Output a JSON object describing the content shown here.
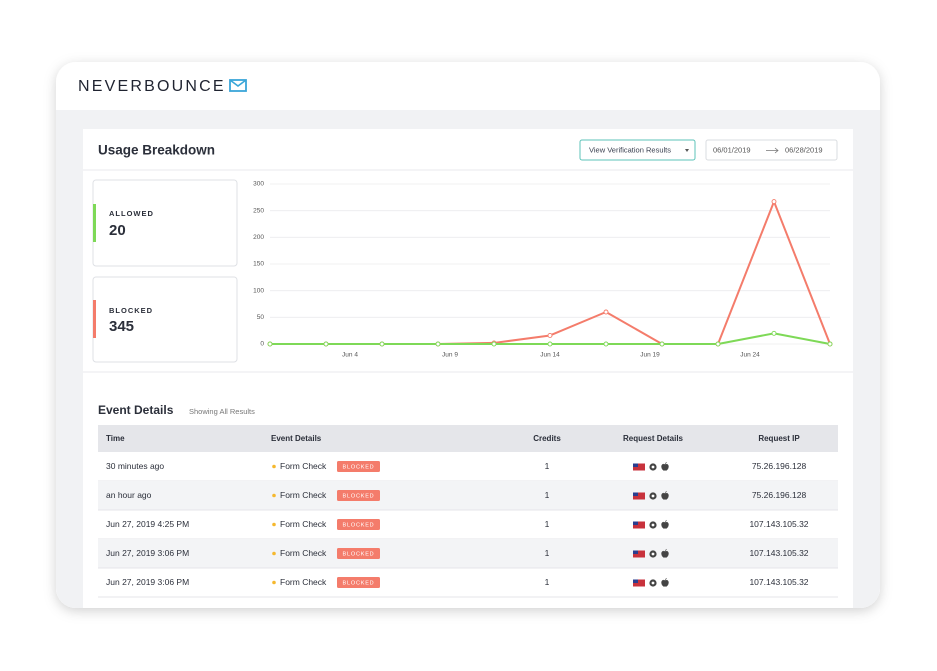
{
  "header": {
    "logo": "NEVERBOUNCE"
  },
  "usage": {
    "title": "Usage Breakdown",
    "button": "View Verification Results",
    "date_from": "06/01/2019",
    "date_to": "06/28/2019",
    "stats": [
      {
        "label": "ALLOWED",
        "value": 20
      },
      {
        "label": "BLOCKED",
        "value": 345
      }
    ]
  },
  "chart_data": {
    "type": "line",
    "x": [
      0,
      2.8,
      5.6,
      8.4,
      11.2,
      14,
      16.8,
      19.6,
      22.4,
      25.2,
      28
    ],
    "series": [
      {
        "color": "#f47c6b",
        "values": [
          0,
          0,
          0,
          0,
          2,
          16,
          60,
          0,
          0,
          267,
          0
        ]
      },
      {
        "color": "#7ed957",
        "values": [
          0,
          0,
          0,
          0,
          0,
          0,
          0,
          0,
          0,
          20,
          0
        ]
      }
    ],
    "xlim": [
      0,
      28
    ],
    "xticks": [
      {
        "value": 4,
        "label": "Jun 4"
      },
      {
        "value": 9,
        "label": "Jun 9"
      },
      {
        "value": 14,
        "label": "Jun 14"
      },
      {
        "value": 19,
        "label": "Jun 19"
      },
      {
        "value": 24,
        "label": "Jun 24"
      }
    ],
    "ylim": [
      0,
      300
    ],
    "yticks": [
      0,
      50,
      100,
      150,
      200,
      250,
      300
    ],
    "grid": true
  },
  "events": {
    "title": "Event Details",
    "subtitle": "Showing All Results",
    "columns": [
      "Time",
      "Event Details",
      "Credits",
      "Request Details",
      "Request IP"
    ],
    "rows": [
      [
        "30 minutes ago",
        "Form Check",
        "BLOCKED",
        "1",
        "75.26.196.128"
      ],
      [
        "an hour ago",
        "Form Check",
        "BLOCKED",
        "1",
        "75.26.196.128"
      ],
      [
        "Jun 27, 2019 4:25 PM",
        "Form Check",
        "BLOCKED",
        "1",
        "107.143.105.32"
      ],
      [
        "Jun 27, 2019 3:06 PM",
        "Form Check",
        "BLOCKED",
        "1",
        "107.143.105.32"
      ],
      [
        "Jun 27, 2019 3:06 PM",
        "Form Check",
        "BLOCKED",
        "1",
        "107.143.105.32"
      ]
    ]
  }
}
